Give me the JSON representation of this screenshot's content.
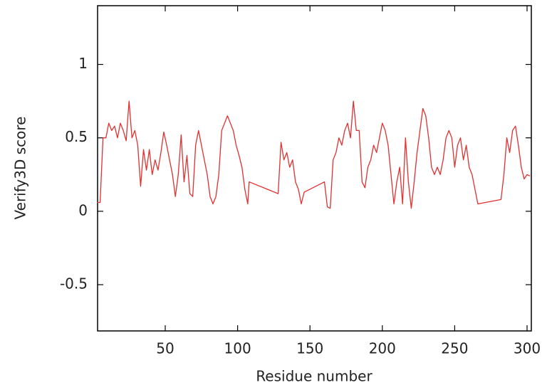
{
  "chart_data": {
    "type": "line",
    "xlabel": "Residue number",
    "ylabel": "Verify3D score",
    "x": [
      3,
      5,
      7,
      9,
      11,
      13,
      15,
      17,
      19,
      21,
      23,
      25,
      27,
      29,
      31,
      33,
      35,
      37,
      39,
      41,
      43,
      45,
      47,
      49,
      51,
      53,
      55,
      57,
      59,
      61,
      63,
      65,
      67,
      69,
      71,
      73,
      75,
      77,
      79,
      81,
      83,
      85,
      87,
      89,
      91,
      93,
      95,
      97,
      99,
      101,
      103,
      105,
      107,
      108,
      128,
      130,
      132,
      134,
      136,
      138,
      140,
      142,
      144,
      146,
      160,
      162,
      164,
      166,
      168,
      170,
      172,
      174,
      176,
      178,
      180,
      182,
      184,
      186,
      188,
      190,
      192,
      194,
      196,
      198,
      200,
      202,
      204,
      206,
      208,
      210,
      212,
      214,
      216,
      218,
      220,
      222,
      224,
      226,
      228,
      230,
      232,
      234,
      236,
      238,
      240,
      242,
      244,
      246,
      248,
      250,
      252,
      254,
      256,
      258,
      260,
      262,
      264,
      266,
      282,
      284,
      286,
      288,
      290,
      292,
      294,
      296,
      298,
      300,
      302
    ],
    "series": [
      {
        "color": "#e03030",
        "values": [
          0.06,
          0.06,
          0.5,
          0.5,
          0.6,
          0.55,
          0.58,
          0.5,
          0.6,
          0.55,
          0.48,
          0.75,
          0.5,
          0.55,
          0.45,
          0.17,
          0.42,
          0.28,
          0.42,
          0.25,
          0.35,
          0.28,
          0.4,
          0.54,
          0.45,
          0.35,
          0.25,
          0.1,
          0.25,
          0.52,
          0.2,
          0.38,
          0.12,
          0.1,
          0.45,
          0.55,
          0.45,
          0.35,
          0.25,
          0.1,
          0.05,
          0.1,
          0.25,
          0.55,
          0.6,
          0.65,
          0.6,
          0.55,
          0.45,
          0.38,
          0.3,
          0.15,
          0.05,
          0.2,
          0.12,
          0.47,
          0.35,
          0.4,
          0.3,
          0.35,
          0.2,
          0.15,
          0.05,
          0.13,
          0.2,
          0.03,
          0.02,
          0.35,
          0.4,
          0.5,
          0.45,
          0.55,
          0.6,
          0.5,
          0.75,
          0.55,
          0.55,
          0.2,
          0.16,
          0.3,
          0.35,
          0.45,
          0.4,
          0.5,
          0.6,
          0.55,
          0.45,
          0.25,
          0.05,
          0.2,
          0.3,
          0.05,
          0.5,
          0.2,
          0.02,
          0.2,
          0.4,
          0.55,
          0.7,
          0.65,
          0.5,
          0.3,
          0.25,
          0.3,
          0.25,
          0.35,
          0.5,
          0.55,
          0.5,
          0.3,
          0.45,
          0.5,
          0.35,
          0.45,
          0.3,
          0.25,
          0.15,
          0.05,
          0.08,
          0.25,
          0.5,
          0.4,
          0.55,
          0.58,
          0.45,
          0.3,
          0.22,
          0.25,
          0.24
        ]
      }
    ],
    "xlim": [
      3.25,
      302.95
    ],
    "ylim": [
      -0.815,
      1.4
    ],
    "xticks": [
      50,
      100,
      150,
      200,
      250,
      300
    ],
    "yticks": [
      -0.5,
      0,
      0.5,
      1
    ]
  }
}
